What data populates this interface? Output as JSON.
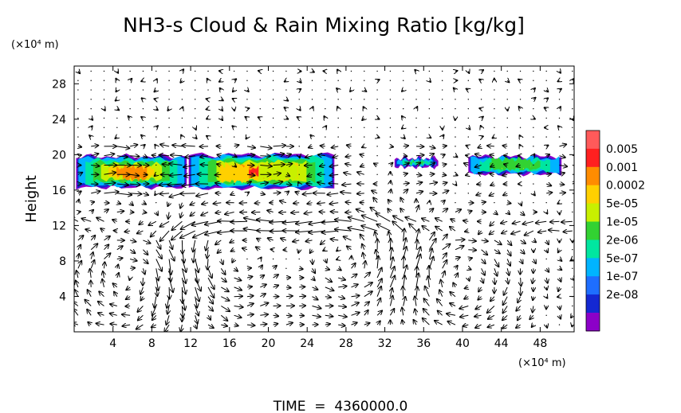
{
  "chart_data": {
    "type": "heatmap",
    "title": "NH3-s Cloud & Rain Mixing Ratio [kg/kg]",
    "ylabel": "Height",
    "y_unit": "(×10⁴ m)",
    "x_unit": "(×10⁴ m)",
    "xlim": [
      0,
      51.5
    ],
    "ylim": [
      0,
      30
    ],
    "x_ticks": [
      "4",
      "8",
      "12",
      "16",
      "20",
      "24",
      "28",
      "32",
      "36",
      "40",
      "44",
      "48"
    ],
    "y_ticks": [
      "4",
      "8",
      "12",
      "16",
      "20",
      "24",
      "28"
    ],
    "x_tick_values": [
      4,
      8,
      12,
      16,
      20,
      24,
      28,
      32,
      36,
      40,
      44,
      48
    ],
    "y_tick_values": [
      4,
      8,
      12,
      16,
      20,
      24,
      28
    ],
    "colorbar": {
      "labels": [
        "0.005",
        "0.001",
        "0.0002",
        "5e-05",
        "1e-05",
        "2e-06",
        "5e-07",
        "1e-07",
        "2e-08"
      ],
      "colors": [
        "#ff5a5a",
        "#ff2020",
        "#ff8c00",
        "#ffd000",
        "#c8f000",
        "#32d232",
        "#00e6a0",
        "#00b4ff",
        "#1e6eff",
        "#1428d2",
        "#8c00c8"
      ]
    },
    "cloud_layers": [
      {
        "x_start": 0.2,
        "x_end": 11.6,
        "y_bottom": 16.3,
        "y_top": 19.8,
        "peak": "0.001"
      },
      {
        "x_start": 11.8,
        "x_end": 26.8,
        "y_bottom": 16.2,
        "y_top": 20.0,
        "peak": "0.005"
      },
      {
        "x_start": 33.0,
        "x_end": 37.5,
        "y_bottom": 18.6,
        "y_top": 19.6,
        "peak": "1e-05"
      },
      {
        "x_start": 40.6,
        "x_end": 50.2,
        "y_bottom": 17.8,
        "y_top": 19.8,
        "peak": "5e-05"
      }
    ],
    "grid": false,
    "legend": "colorbar right",
    "footer": "TIME  =  4360000.0"
  }
}
